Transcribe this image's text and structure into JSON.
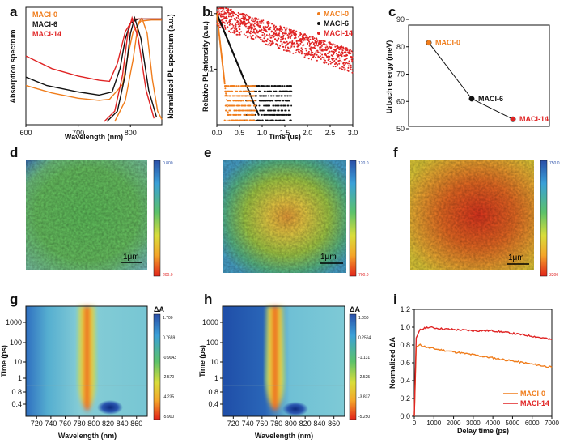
{
  "panel_letters": [
    "a",
    "b",
    "c",
    "d",
    "e",
    "f",
    "g",
    "h",
    "i"
  ],
  "colors": {
    "maci0": "#f07d1c",
    "maci6": "#111111",
    "maci14": "#e02424"
  },
  "chart_data": [
    {
      "id": "a",
      "type": "line",
      "xlabel": "Wavelength (nm)",
      "ylabel_left": "Absorption spectrum",
      "ylabel_right": "Normalized PL spectrum (a.u.)",
      "xlim": [
        600,
        860
      ],
      "xticks": [
        "600",
        "700",
        "800"
      ],
      "series": [
        {
          "name": "MACI-0",
          "absorption": [
            [
              600,
              0.34
            ],
            [
              650,
              0.27
            ],
            [
              700,
              0.22
            ],
            [
              740,
              0.2
            ],
            [
              760,
              0.21
            ],
            [
              785,
              0.35
            ],
            [
              795,
              0.62
            ],
            [
              805,
              0.85
            ],
            [
              820,
              0.95
            ],
            [
              840,
              0.96
            ],
            [
              860,
              0.96
            ]
          ],
          "pl": [
            [
              770,
              0
            ],
            [
              790,
              0.2
            ],
            [
              805,
              0.6
            ],
            [
              815,
              0.95
            ],
            [
              822,
              1.0
            ],
            [
              832,
              0.85
            ],
            [
              842,
              0.4
            ],
            [
              852,
              0.1
            ],
            [
              860,
              0.02
            ]
          ]
        },
        {
          "name": "MACI-6",
          "absorption": [
            [
              600,
              0.42
            ],
            [
              640,
              0.34
            ],
            [
              700,
              0.28
            ],
            [
              740,
              0.25
            ],
            [
              765,
              0.28
            ],
            [
              780,
              0.5
            ],
            [
              790,
              0.78
            ],
            [
              800,
              0.93
            ],
            [
              815,
              0.97
            ],
            [
              860,
              0.97
            ]
          ],
          "pl": [
            [
              755,
              0
            ],
            [
              775,
              0.1
            ],
            [
              790,
              0.45
            ],
            [
              800,
              0.85
            ],
            [
              808,
              1.0
            ],
            [
              820,
              0.8
            ],
            [
              835,
              0.3
            ],
            [
              850,
              0.04
            ]
          ]
        },
        {
          "name": "MACI-14",
          "absorption": [
            [
              600,
              0.62
            ],
            [
              650,
              0.5
            ],
            [
              700,
              0.43
            ],
            [
              740,
              0.39
            ],
            [
              760,
              0.38
            ],
            [
              775,
              0.55
            ],
            [
              790,
              0.85
            ],
            [
              805,
              0.97
            ],
            [
              860,
              0.97
            ]
          ],
          "pl": [
            [
              750,
              0
            ],
            [
              770,
              0.1
            ],
            [
              785,
              0.45
            ],
            [
              795,
              0.85
            ],
            [
              803,
              1.0
            ],
            [
              815,
              0.8
            ],
            [
              830,
              0.3
            ],
            [
              845,
              0.03
            ]
          ]
        }
      ]
    },
    {
      "id": "b",
      "type": "scatter",
      "xlabel": "Time (us)",
      "ylabel": "Relative PL intensity (a.u.)",
      "xlim": [
        0,
        3
      ],
      "ylim_log": [
        0.01,
        1.3
      ],
      "xticks": [
        "0.0",
        "0.5",
        "1.0",
        "1.5",
        "2.0",
        "2.5",
        "3.0"
      ],
      "yticks": [
        "1",
        "0.1"
      ],
      "series": [
        {
          "name": "MACI-0",
          "tau_us": 0.06,
          "floor": 0.012,
          "end_us": 0.85
        },
        {
          "name": "MACI-6",
          "tau_us": 0.22,
          "floor": 0.012,
          "end_us": 1.65
        },
        {
          "name": "MACI-14",
          "tau_us": 1.6,
          "floor": 0.01,
          "end_us": 3.0
        }
      ]
    },
    {
      "id": "c",
      "type": "line",
      "xlabel": "",
      "ylabel": "Urbach energy (meV)",
      "ylim": [
        50,
        90
      ],
      "yticks": [
        "50",
        "60",
        "70",
        "80",
        "90"
      ],
      "categories": [
        "MACI-0",
        "MACI-6",
        "MACI-14"
      ],
      "values": [
        81.5,
        61,
        53.5
      ]
    },
    {
      "id": "d",
      "type": "heatmap",
      "scale_top": "0.800",
      "scale_bottom": "200.0",
      "scalebar": "1μm"
    },
    {
      "id": "e",
      "type": "heatmap",
      "scale_top": "120.0",
      "scale_bottom": "700.0",
      "scalebar": "1μm"
    },
    {
      "id": "f",
      "type": "heatmap",
      "scale_top": "750.0",
      "scale_bottom": "3200",
      "scalebar": "1μm"
    },
    {
      "id": "g",
      "type": "heatmap",
      "xlabel": "Wavelength (nm)",
      "ylabel": "Time (ps)",
      "colorbar_title": "ΔA",
      "xticks": [
        "720",
        "740",
        "760",
        "780",
        "800",
        "820",
        "840",
        "860"
      ],
      "yticks": [
        "1000",
        "100",
        "10",
        "1",
        "0.8",
        "0.4"
      ],
      "colorbar_ticks": [
        "1.700",
        "0.7659",
        "-0.9043",
        "-2.570",
        "-4.235",
        "-5.900"
      ]
    },
    {
      "id": "h",
      "type": "heatmap",
      "xlabel": "Wavelength (nm)",
      "ylabel": "Time (ps)",
      "colorbar_title": "ΔA",
      "xticks": [
        "720",
        "740",
        "760",
        "780",
        "800",
        "820",
        "840",
        "860"
      ],
      "yticks": [
        "1000",
        "100",
        "10",
        "1",
        "0.8",
        "0.4"
      ],
      "colorbar_ticks": [
        "1.050",
        "0.2564",
        "-1.131",
        "-2.525",
        "-3.837",
        "-5.250"
      ]
    },
    {
      "id": "i",
      "type": "line",
      "xlabel": "Delay time (ps)",
      "ylabel": "Normalized ΔA",
      "xlim": [
        0,
        7000
      ],
      "ylim": [
        0,
        1.2
      ],
      "xticks": [
        "0",
        "1000",
        "2000",
        "3000",
        "4000",
        "5000",
        "6000",
        "7000"
      ],
      "yticks": [
        "0.0",
        "0.2",
        "0.4",
        "0.6",
        "0.8",
        "1.0",
        "1.2"
      ],
      "series": [
        {
          "name": "MACI-0",
          "points": [
            [
              0,
              0
            ],
            [
              100,
              0.78
            ],
            [
              300,
              0.8
            ],
            [
              700,
              0.77
            ],
            [
              1500,
              0.74
            ],
            [
              3000,
              0.69
            ],
            [
              5000,
              0.62
            ],
            [
              7000,
              0.55
            ]
          ]
        },
        {
          "name": "MACI-14",
          "points": [
            [
              0,
              0
            ],
            [
              100,
              0.88
            ],
            [
              300,
              0.97
            ],
            [
              700,
              1.0
            ],
            [
              1500,
              0.98
            ],
            [
              3000,
              0.96
            ],
            [
              4000,
              0.96
            ],
            [
              5000,
              0.93
            ],
            [
              6000,
              0.9
            ],
            [
              7000,
              0.86
            ]
          ]
        }
      ]
    }
  ]
}
